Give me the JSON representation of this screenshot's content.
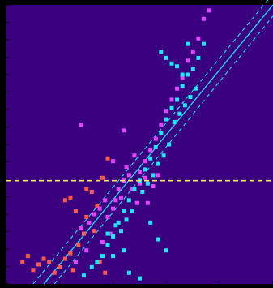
{
  "chart_data": {
    "type": "scatter",
    "title": "",
    "xlabel": "",
    "ylabel": "",
    "xlim": [
      0,
      100
    ],
    "ylim": [
      0,
      100
    ],
    "grid": false,
    "colors": {
      "background": "#000000",
      "plot_background": "#3b0080",
      "axis": "#000000",
      "tick": "#000000",
      "fit_line": "#22d3ee",
      "hline": "#f5e663"
    },
    "reference_line": {
      "orientation": "horizontal",
      "y": 37,
      "style": "dashed"
    },
    "fit": {
      "line": [
        [
          14,
          0
        ],
        [
          100,
          100
        ]
      ],
      "upper": [
        [
          10,
          0
        ],
        [
          100,
          104
        ]
      ],
      "lower": [
        [
          18,
          0
        ],
        [
          100,
          96
        ]
      ],
      "style_band": "dashed"
    },
    "series": [
      {
        "color": "#ff5a4a",
        "points": [
          [
            6,
            8
          ],
          [
            8,
            10
          ],
          [
            10,
            5
          ],
          [
            12,
            7
          ],
          [
            14,
            9
          ],
          [
            16,
            8
          ],
          [
            18,
            4
          ],
          [
            20,
            6
          ],
          [
            22,
            9
          ],
          [
            24,
            11
          ],
          [
            25,
            5
          ],
          [
            27,
            14
          ],
          [
            28,
            20
          ],
          [
            30,
            24
          ],
          [
            26,
            26
          ],
          [
            24,
            31
          ],
          [
            22,
            30
          ],
          [
            30,
            34
          ],
          [
            32,
            33
          ],
          [
            34,
            28
          ],
          [
            35,
            8
          ],
          [
            37,
            4
          ],
          [
            33,
            19
          ],
          [
            29,
            18
          ],
          [
            36,
            38
          ],
          [
            38,
            45
          ]
        ]
      },
      {
        "color": "#e046ff",
        "points": [
          [
            26,
            8
          ],
          [
            28,
            20
          ],
          [
            31,
            22
          ],
          [
            33,
            25
          ],
          [
            35,
            27
          ],
          [
            37,
            30
          ],
          [
            38,
            24
          ],
          [
            39,
            18
          ],
          [
            41,
            30
          ],
          [
            42,
            34
          ],
          [
            44,
            37
          ],
          [
            45,
            42
          ],
          [
            46,
            39
          ],
          [
            48,
            46
          ],
          [
            50,
            40
          ],
          [
            52,
            44
          ],
          [
            54,
            48
          ],
          [
            56,
            52
          ],
          [
            58,
            57
          ],
          [
            60,
            62
          ],
          [
            62,
            66
          ],
          [
            64,
            70
          ],
          [
            66,
            74
          ],
          [
            68,
            80
          ],
          [
            70,
            83
          ],
          [
            72,
            88
          ],
          [
            74,
            95
          ],
          [
            76,
            98
          ],
          [
            40,
            27
          ],
          [
            43,
            31
          ],
          [
            47,
            34
          ],
          [
            50,
            36
          ],
          [
            52,
            38
          ],
          [
            55,
            35
          ],
          [
            57,
            39
          ],
          [
            53,
            29
          ],
          [
            49,
            29
          ],
          [
            36,
            15
          ],
          [
            30,
            12
          ],
          [
            28,
            57
          ],
          [
            44,
            55
          ],
          [
            40,
            44
          ]
        ]
      },
      {
        "color": "#1ee7ff",
        "points": [
          [
            29,
            3
          ],
          [
            32,
            6
          ],
          [
            34,
            8
          ],
          [
            36,
            10
          ],
          [
            38,
            14
          ],
          [
            40,
            17
          ],
          [
            42,
            22
          ],
          [
            44,
            26
          ],
          [
            46,
            30
          ],
          [
            48,
            34
          ],
          [
            50,
            37
          ],
          [
            52,
            41
          ],
          [
            54,
            45
          ],
          [
            56,
            49
          ],
          [
            58,
            54
          ],
          [
            60,
            59
          ],
          [
            62,
            63
          ],
          [
            64,
            66
          ],
          [
            66,
            71
          ],
          [
            68,
            75
          ],
          [
            70,
            77
          ],
          [
            72,
            81
          ],
          [
            74,
            86
          ],
          [
            38,
            18
          ],
          [
            41,
            21
          ],
          [
            43,
            19
          ],
          [
            45,
            23
          ],
          [
            47,
            26
          ],
          [
            51,
            33
          ],
          [
            53,
            36
          ],
          [
            55,
            39
          ],
          [
            57,
            43
          ],
          [
            59,
            46
          ],
          [
            61,
            50
          ],
          [
            63,
            58
          ],
          [
            65,
            61
          ],
          [
            67,
            64
          ],
          [
            69,
            67
          ],
          [
            71,
            70
          ],
          [
            54,
            22
          ],
          [
            57,
            16
          ],
          [
            60,
            12
          ],
          [
            46,
            4
          ],
          [
            50,
            2
          ],
          [
            40,
            10
          ],
          [
            44,
            12
          ],
          [
            58,
            83
          ],
          [
            60,
            81
          ],
          [
            62,
            79
          ],
          [
            64,
            78
          ],
          [
            66,
            75
          ],
          [
            68,
            86
          ]
        ]
      }
    ]
  }
}
